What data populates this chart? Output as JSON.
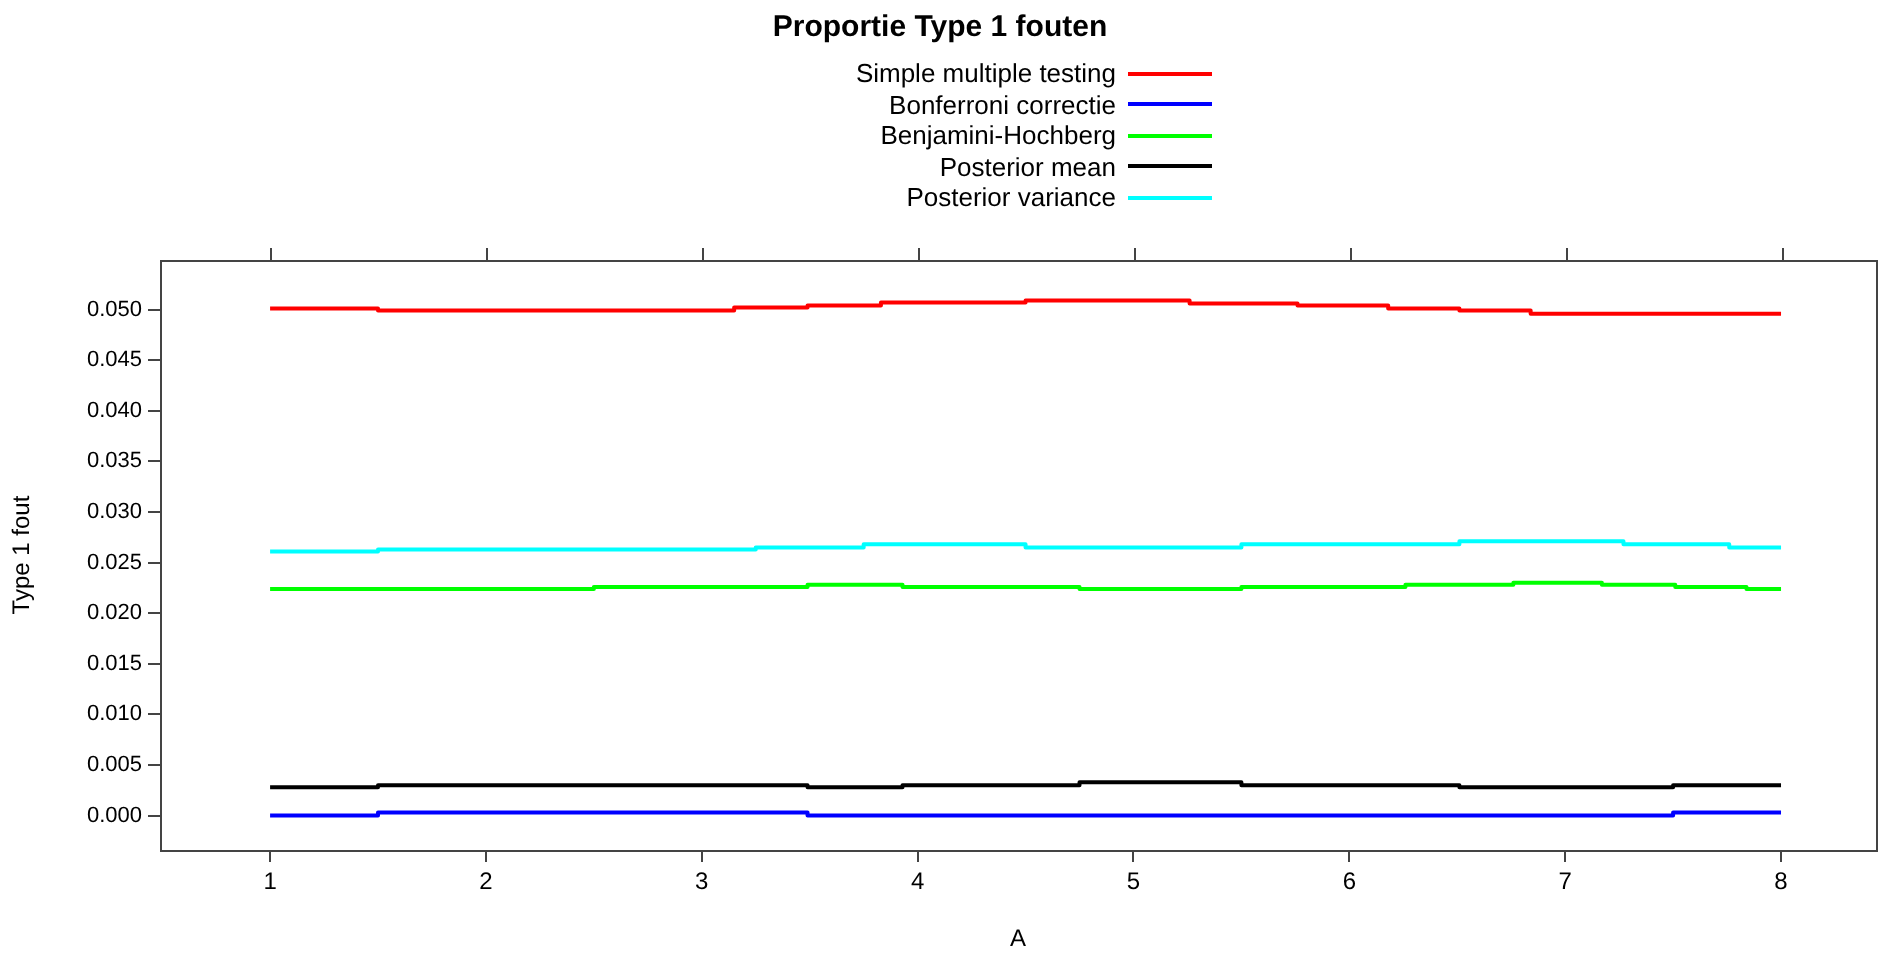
{
  "chart_data": {
    "type": "step",
    "title": "Proportie Type 1 fouten",
    "xlabel": "A",
    "ylabel": "Type 1 fout",
    "legend": "top",
    "marker": "none",
    "xlim": [
      0.49,
      8.44
    ],
    "xticks": [
      1,
      2,
      3,
      4,
      5,
      6,
      7,
      8
    ],
    "ylim": [
      -0.0034,
      0.0549
    ],
    "yticks": [
      {
        "value": 0,
        "label": "0.000"
      },
      {
        "value": 0.005,
        "label": "0.005"
      },
      {
        "value": 0.01,
        "label": "0.010"
      },
      {
        "value": 0.015,
        "label": "0.015"
      },
      {
        "value": 0.02,
        "label": "0.020"
      },
      {
        "value": 0.025,
        "label": "0.025"
      },
      {
        "value": 0.03,
        "label": "0.030"
      },
      {
        "value": 0.035,
        "label": "0.035"
      },
      {
        "value": 0.04,
        "label": "0.040"
      },
      {
        "value": 0.045,
        "label": "0.045"
      },
      {
        "value": 0.05,
        "label": "0.050"
      }
    ],
    "series": [
      {
        "name": "Simple multiple testing",
        "color": "#ff0000",
        "x": [
          1,
          1.5,
          3.15,
          3.49,
          3.83,
          4.5,
          5.26,
          5.76,
          6.18,
          6.51,
          6.84,
          8
        ],
        "values": [
          0.0501,
          0.0499,
          0.0502,
          0.0504,
          0.0507,
          0.0509,
          0.0506,
          0.0504,
          0.0501,
          0.0499,
          0.0496,
          0.0496
        ]
      },
      {
        "name": "Bonferroni correctie",
        "color": "#0000ff",
        "x": [
          1,
          1.5,
          3.49,
          7.5,
          8
        ],
        "values": [
          0,
          0.0003,
          0,
          0.0003,
          0.0003
        ]
      },
      {
        "name": "Benjamini-Hochberg",
        "color": "#00ff00",
        "x": [
          1,
          2.5,
          3.49,
          3.93,
          4.75,
          5.5,
          6.26,
          6.76,
          7.17,
          7.51,
          7.84,
          8
        ],
        "values": [
          0.0224,
          0.0226,
          0.0228,
          0.0226,
          0.0224,
          0.0226,
          0.0228,
          0.023,
          0.0228,
          0.0226,
          0.0224,
          0.0224
        ]
      },
      {
        "name": "Posterior mean",
        "color": "#000000",
        "x": [
          1,
          1.5,
          3.49,
          3.93,
          4.75,
          5.5,
          6.51,
          7.5,
          8
        ],
        "values": [
          0.0028,
          0.003,
          0.0028,
          0.003,
          0.0033,
          0.003,
          0.0028,
          0.003,
          0.003
        ]
      },
      {
        "name": "Posterior variance",
        "color": "#00ffff",
        "x": [
          1,
          1.5,
          3.25,
          3.75,
          4.5,
          5.5,
          6.51,
          7.27,
          7.76,
          8
        ],
        "values": [
          0.0261,
          0.0263,
          0.0265,
          0.0268,
          0.0265,
          0.0268,
          0.0271,
          0.0268,
          0.0265,
          0.0265
        ]
      }
    ]
  }
}
